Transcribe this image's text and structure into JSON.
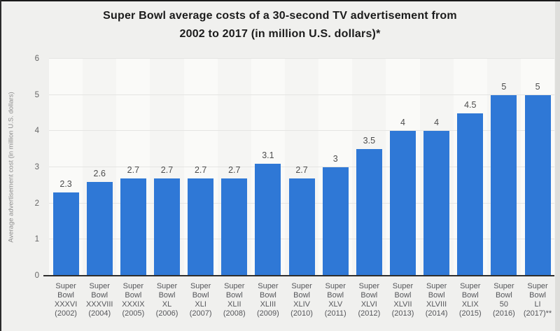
{
  "title": {
    "line1": "Super Bowl average costs of a 30-second TV advertisement from",
    "line2": "2002 to 2017 (in million U.S. dollars)*"
  },
  "chart_data": {
    "type": "bar",
    "title": "Super Bowl average costs of a 30-second TV advertisement from 2002 to 2017 (in million U.S. dollars)*",
    "xlabel": "",
    "ylabel": "Average advertisement cost (in million U.S. dollars)",
    "ylim": [
      0,
      6
    ],
    "yticks": [
      0,
      1,
      2,
      3,
      4,
      5,
      6
    ],
    "grid": true,
    "legend": "none",
    "categories": [
      [
        "Super",
        "Bowl",
        "XXXVI",
        "(2002)"
      ],
      [
        "Super",
        "Bowl",
        "XXXVIII",
        "(2004)"
      ],
      [
        "Super",
        "Bowl",
        "XXXIX",
        "(2005)"
      ],
      [
        "Super",
        "Bowl",
        "XL",
        "(2006)"
      ],
      [
        "Super",
        "Bowl",
        "XLI",
        "(2007)"
      ],
      [
        "Super",
        "Bowl",
        "XLII",
        "(2008)"
      ],
      [
        "Super",
        "Bowl",
        "XLIII",
        "(2009)"
      ],
      [
        "Super",
        "Bowl",
        "XLIV",
        "(2010)"
      ],
      [
        "Super",
        "Bowl",
        "XLV",
        "(2011)"
      ],
      [
        "Super",
        "Bowl",
        "XLVI",
        "(2012)"
      ],
      [
        "Super",
        "Bowl",
        "XLVII",
        "(2013)"
      ],
      [
        "Super",
        "Bowl",
        "XLVIII",
        "(2014)"
      ],
      [
        "Super",
        "Bowl",
        "XLIX",
        "(2015)"
      ],
      [
        "Super",
        "Bowl",
        "50",
        "(2016)"
      ],
      [
        "Super",
        "Bowl",
        "LI",
        "(2017)**"
      ]
    ],
    "values": [
      2.3,
      2.6,
      2.7,
      2.7,
      2.7,
      2.7,
      3.1,
      2.7,
      3,
      3.5,
      4,
      4,
      4.5,
      5,
      5
    ],
    "value_labels": [
      "2.3",
      "2.6",
      "2.7",
      "2.7",
      "2.7",
      "2.7",
      "3.1",
      "2.7",
      "3",
      "3.5",
      "4",
      "4",
      "4.5",
      "5",
      "5"
    ]
  },
  "colors": {
    "bar": "#2f78d6",
    "card_bg": "#f0f0ee",
    "band_even": "#fafaf8",
    "band_odd": "#f5f5f3",
    "gridline": "#e5e5e3",
    "axis_line": "#2e2e2e",
    "title_text": "#1b1b1b",
    "value_label": "#4d4d4d",
    "tick_label": "#666666",
    "x_label": "#55565a",
    "y_axis_title": "#8c8c8c"
  }
}
